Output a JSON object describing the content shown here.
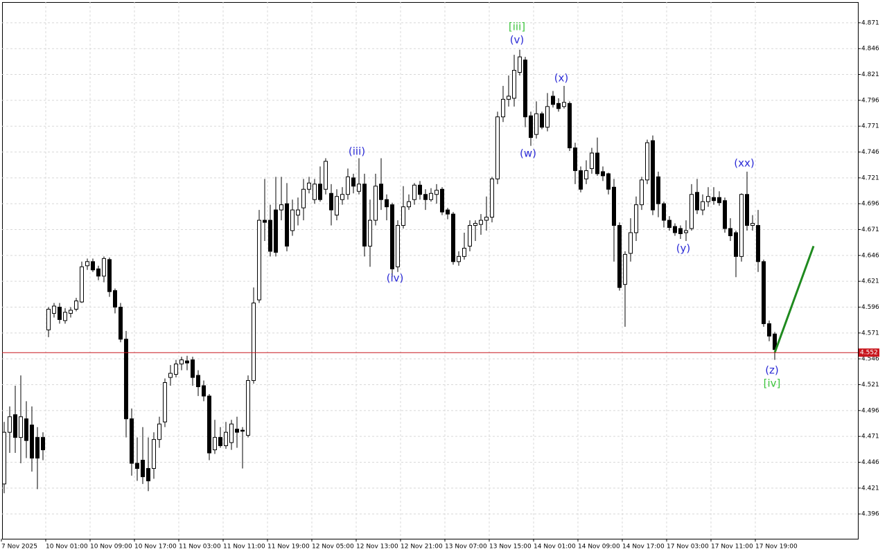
{
  "chart_data": {
    "type": "candlestick",
    "categories": [
      "7 Nov 2025",
      null,
      null,
      null,
      null,
      null,
      null,
      null,
      "10 Nov 01:00",
      null,
      null,
      null,
      null,
      null,
      null,
      null,
      "10 Nov 09:00",
      null,
      null,
      null,
      null,
      null,
      null,
      null,
      "10 Nov 17:00",
      null,
      null,
      null,
      null,
      null,
      null,
      null,
      "11 Nov 03:00",
      null,
      null,
      null,
      null,
      null,
      null,
      null,
      "11 Nov 11:00",
      null,
      null,
      null,
      null,
      null,
      null,
      null,
      "11 Nov 19:00",
      null,
      null,
      null,
      null,
      null,
      null,
      null,
      "12 Nov 05:00",
      null,
      null,
      null,
      null,
      null,
      null,
      null,
      "12 Nov 13:00",
      null,
      null,
      null,
      null,
      null,
      null,
      null,
      "12 Nov 21:00",
      null,
      null,
      null,
      null,
      null,
      null,
      null,
      "13 Nov 07:00",
      null,
      null,
      null,
      null,
      null,
      null,
      null,
      "13 Nov 15:00",
      null,
      null,
      null,
      null,
      null,
      null,
      null,
      "14 Nov 01:00",
      null,
      null,
      null,
      null,
      null,
      null,
      null,
      "14 Nov 09:00",
      null,
      null,
      null,
      null,
      null,
      null,
      null,
      "14 Nov 17:00",
      null,
      null,
      null,
      null,
      null,
      null,
      null,
      "17 Nov 03:00",
      null,
      null,
      null,
      null,
      null,
      null,
      null,
      "17 Nov 11:00",
      null,
      null,
      null,
      null,
      null,
      null,
      null,
      "17 Nov 19:00",
      null,
      null,
      null
    ],
    "open": [
      4.425,
      4.475,
      4.492,
      4.47,
      4.488,
      4.482,
      4.47,
      4.47,
      4.574,
      4.59,
      4.596,
      4.583,
      4.59,
      4.594,
      4.601,
      4.636,
      4.64,
      4.633,
      4.626,
      4.642,
      4.612,
      4.596,
      4.565,
      4.488,
      4.445,
      4.448,
      4.44,
      4.44,
      4.468,
      4.485,
      4.528,
      4.531,
      4.541,
      4.544,
      4.545,
      4.53,
      4.52,
      4.51,
      4.458,
      4.47,
      4.462,
      4.465,
      4.478,
      4.477,
      4.472,
      4.525,
      4.603,
      4.68,
      4.68,
      4.69,
      4.69,
      4.696,
      4.67,
      4.685,
      4.692,
      4.71,
      4.7,
      4.715,
      4.71,
      4.706,
      4.685,
      4.7,
      4.705,
      4.721,
      4.708,
      4.715,
      4.655,
      4.68,
      4.715,
      4.7,
      4.695,
      4.635,
      4.675,
      4.693,
      4.7,
      4.714,
      4.705,
      4.7,
      4.705,
      4.71,
      4.69,
      4.686,
      4.64,
      4.645,
      4.655,
      4.675,
      4.676,
      4.68,
      4.683,
      4.72,
      4.78,
      4.797,
      4.798,
      4.823,
      4.835,
      4.781,
      4.763,
      4.783,
      4.77,
      4.8,
      4.793,
      4.79,
      4.793,
      4.75,
      4.728,
      4.72,
      4.73,
      4.745,
      4.727,
      4.725,
      4.712,
      4.675,
      4.618,
      4.648,
      4.668,
      4.695,
      4.719,
      4.757,
      4.722,
      4.696,
      4.68,
      4.674,
      4.672,
      4.668,
      4.672,
      4.707,
      4.69,
      4.698,
      4.702,
      4.702,
      4.699,
      4.672,
      4.668,
      4.645,
      4.705,
      4.675,
      4.675,
      4.64,
      4.58,
      4.57
    ],
    "high": [
      4.485,
      4.5,
      4.52,
      4.53,
      4.505,
      4.5,
      4.48,
      4.475,
      4.596,
      4.6,
      4.6,
      4.595,
      4.596,
      4.605,
      4.64,
      4.643,
      4.643,
      4.636,
      4.645,
      4.644,
      4.614,
      4.6,
      4.573,
      4.498,
      4.47,
      4.48,
      4.47,
      4.475,
      4.49,
      4.527,
      4.54,
      4.545,
      4.548,
      4.549,
      4.548,
      4.535,
      4.525,
      4.512,
      4.487,
      4.48,
      4.485,
      4.487,
      4.49,
      4.48,
      4.53,
      4.615,
      4.69,
      4.72,
      4.695,
      4.722,
      4.722,
      4.716,
      4.7,
      4.702,
      4.72,
      4.722,
      4.72,
      4.732,
      4.74,
      4.715,
      4.71,
      4.712,
      4.73,
      4.725,
      4.74,
      4.725,
      4.7,
      4.725,
      4.74,
      4.705,
      4.697,
      4.68,
      4.713,
      4.705,
      4.716,
      4.718,
      4.71,
      4.711,
      4.715,
      4.712,
      4.692,
      4.688,
      4.65,
      4.668,
      4.68,
      4.68,
      4.686,
      4.703,
      4.722,
      4.785,
      4.81,
      4.82,
      4.84,
      4.845,
      4.838,
      4.785,
      4.795,
      4.785,
      4.803,
      4.805,
      4.798,
      4.81,
      4.795,
      4.755,
      4.732,
      4.738,
      4.75,
      4.76,
      4.732,
      4.726,
      4.72,
      4.678,
      4.65,
      4.682,
      4.703,
      4.722,
      4.758,
      4.762,
      4.727,
      4.698,
      4.684,
      4.677,
      4.675,
      4.68,
      4.715,
      4.72,
      4.705,
      4.712,
      4.712,
      4.708,
      4.702,
      4.682,
      4.67,
      4.706,
      4.727,
      4.685,
      4.69,
      4.642,
      4.583,
      4.572
    ],
    "low": [
      4.416,
      4.455,
      4.455,
      4.445,
      4.45,
      4.437,
      4.42,
      4.448,
      4.567,
      4.586,
      4.58,
      4.58,
      4.586,
      4.592,
      4.6,
      4.632,
      4.63,
      4.622,
      4.62,
      4.606,
      4.59,
      4.562,
      4.47,
      4.433,
      4.428,
      4.425,
      4.418,
      4.43,
      4.46,
      4.48,
      4.52,
      4.528,
      4.535,
      4.535,
      4.52,
      4.51,
      4.505,
      4.448,
      4.454,
      4.46,
      4.459,
      4.458,
      4.46,
      4.44,
      4.47,
      4.522,
      4.6,
      4.66,
      4.645,
      4.645,
      4.68,
      4.65,
      4.665,
      4.675,
      4.68,
      4.706,
      4.696,
      4.698,
      4.705,
      4.675,
      4.68,
      4.695,
      4.7,
      4.706,
      4.705,
      4.645,
      4.635,
      4.675,
      4.69,
      4.68,
      4.625,
      4.63,
      4.672,
      4.69,
      4.695,
      4.7,
      4.69,
      4.698,
      4.696,
      4.685,
      4.681,
      4.637,
      4.636,
      4.642,
      4.65,
      4.66,
      4.666,
      4.67,
      4.678,
      4.715,
      4.775,
      4.79,
      4.79,
      4.82,
      4.77,
      4.752,
      4.759,
      4.768,
      4.766,
      4.789,
      4.785,
      4.788,
      4.747,
      4.715,
      4.707,
      4.715,
      4.725,
      4.723,
      4.718,
      4.705,
      4.64,
      4.612,
      4.577,
      4.64,
      4.66,
      4.69,
      4.715,
      4.685,
      4.683,
      4.673,
      4.67,
      4.665,
      4.662,
      4.66,
      4.67,
      4.686,
      4.685,
      4.693,
      4.695,
      4.694,
      4.668,
      4.66,
      4.625,
      4.64,
      4.67,
      4.67,
      4.63,
      4.577,
      4.563,
      4.545
    ],
    "close": [
      4.475,
      4.49,
      4.47,
      4.49,
      4.467,
      4.45,
      4.45,
      4.458,
      4.594,
      4.597,
      4.584,
      4.591,
      4.593,
      4.602,
      4.635,
      4.64,
      4.632,
      4.626,
      4.643,
      4.611,
      4.596,
      4.565,
      4.488,
      4.445,
      4.44,
      4.432,
      4.428,
      4.468,
      4.483,
      4.523,
      4.532,
      4.541,
      4.545,
      4.542,
      4.528,
      4.519,
      4.51,
      4.455,
      4.47,
      4.462,
      4.475,
      4.483,
      4.475,
      4.476,
      4.525,
      4.6,
      4.68,
      4.678,
      4.65,
      4.649,
      4.695,
      4.655,
      4.69,
      4.69,
      4.71,
      4.716,
      4.715,
      4.7,
      4.737,
      4.69,
      4.703,
      4.705,
      4.722,
      4.713,
      4.715,
      4.655,
      4.68,
      4.713,
      4.7,
      4.693,
      4.633,
      4.675,
      4.693,
      4.698,
      4.714,
      4.705,
      4.7,
      4.706,
      4.709,
      4.688,
      4.686,
      4.64,
      4.645,
      4.653,
      4.675,
      4.677,
      4.68,
      4.683,
      4.72,
      4.78,
      4.797,
      4.8,
      4.825,
      4.838,
      4.78,
      4.76,
      4.783,
      4.77,
      4.79,
      4.792,
      4.788,
      4.794,
      4.75,
      4.728,
      4.71,
      4.728,
      4.745,
      4.725,
      4.723,
      4.71,
      4.675,
      4.615,
      4.647,
      4.668,
      4.695,
      4.719,
      4.755,
      4.69,
      4.696,
      4.68,
      4.673,
      4.668,
      4.667,
      4.67,
      4.705,
      4.69,
      4.698,
      4.703,
      4.699,
      4.697,
      4.672,
      4.665,
      4.645,
      4.705,
      4.675,
      4.677,
      4.64,
      4.58,
      4.568,
      4.555
    ],
    "ylim": [
      4.372,
      4.891
    ],
    "yticks": [
      4.871,
      4.846,
      4.821,
      4.796,
      4.771,
      4.746,
      4.721,
      4.696,
      4.671,
      4.646,
      4.621,
      4.596,
      4.571,
      4.546,
      4.521,
      4.496,
      4.471,
      4.446,
      4.421,
      4.396
    ],
    "grid": true,
    "last_price": {
      "value": 4.552,
      "color": "#c8161d"
    },
    "forecast": {
      "color": "#1f8a1f",
      "values": [
        4.552,
        4.655
      ]
    },
    "annotations": [
      {
        "text": "[iii]",
        "color": "#3cc43c"
      },
      {
        "text": "(v)",
        "color": "#2b2bd6"
      },
      {
        "text": "(x)",
        "color": "#2b2bd6"
      },
      {
        "text": "(iii)",
        "color": "#2b2bd6"
      },
      {
        "text": "(w)",
        "color": "#2b2bd6"
      },
      {
        "text": "(iv)",
        "color": "#2b2bd6"
      },
      {
        "text": "(xx)",
        "color": "#2b2bd6"
      },
      {
        "text": "(y)",
        "color": "#2b2bd6"
      },
      {
        "text": "(z)",
        "color": "#2b2bd6"
      },
      {
        "text": "[iv]",
        "color": "#3cc43c"
      }
    ]
  }
}
